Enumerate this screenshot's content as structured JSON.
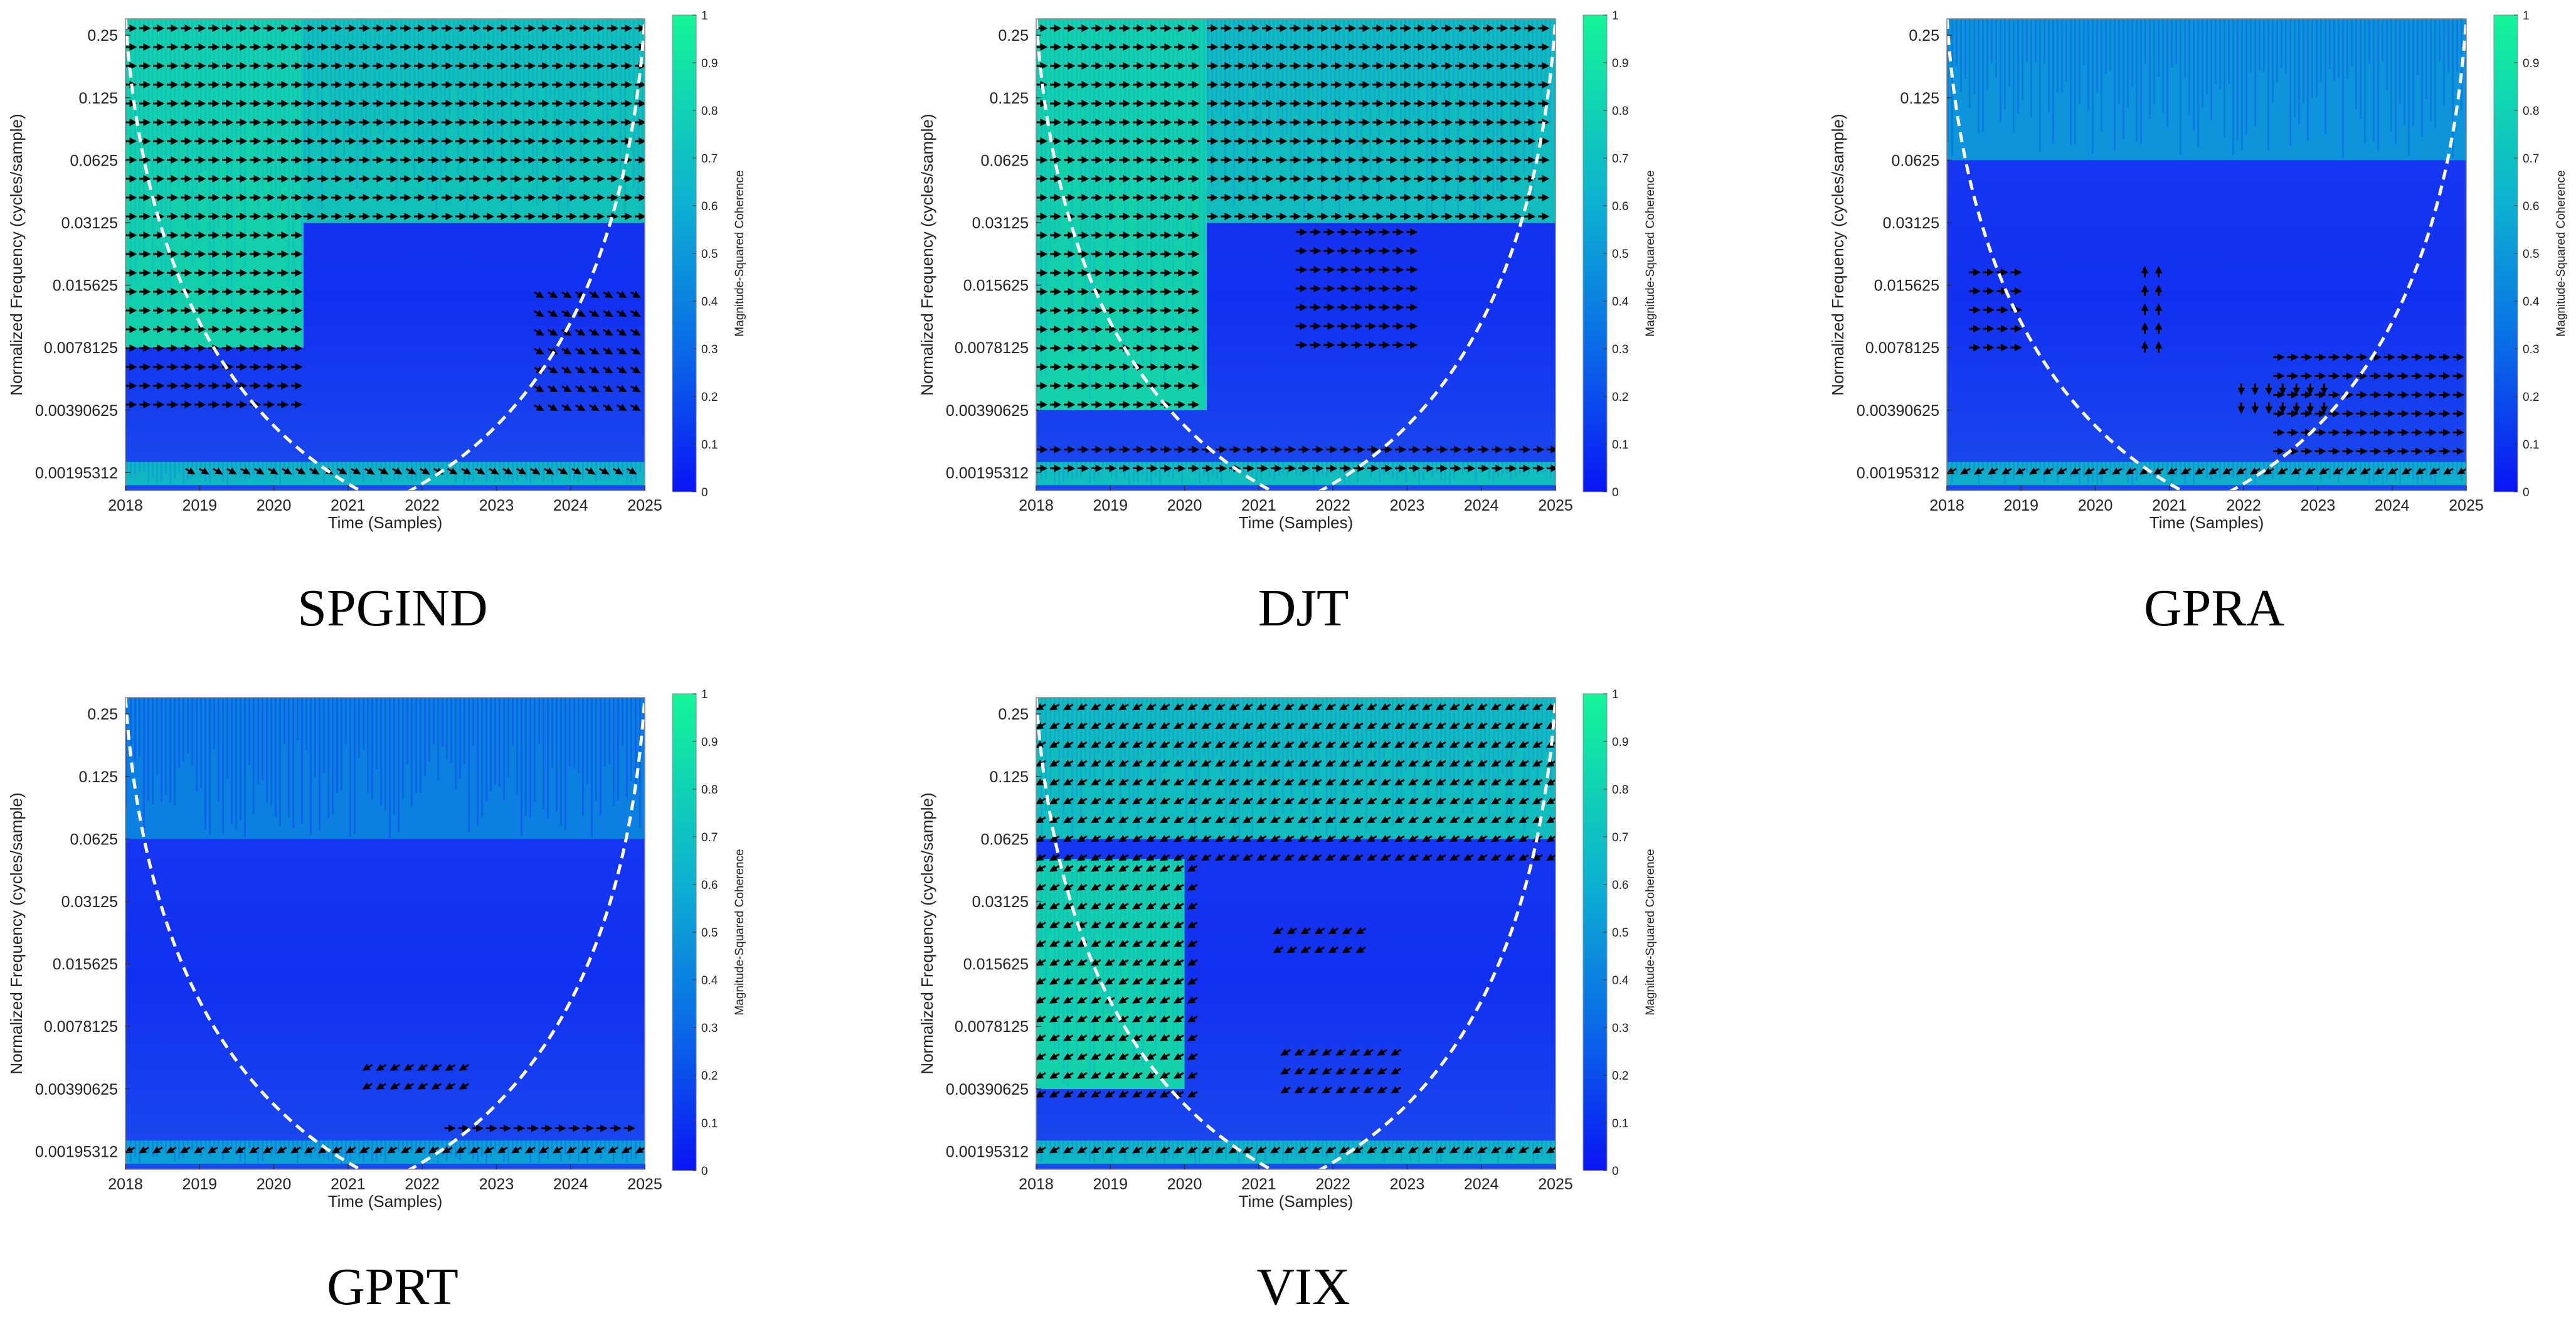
{
  "chart_data": [
    {
      "type": "heatmap",
      "name": "SPGIND",
      "caption": "SPGIND",
      "xlabel": "Time (Samples)",
      "ylabel": "Normalized Frequency  (cycles/sample)",
      "x_ticks": [
        "2018",
        "2019",
        "2020",
        "2021",
        "2022",
        "2023",
        "2024",
        "2025"
      ],
      "y_ticks": [
        "0.25",
        "0.125",
        "0.0625",
        "0.03125",
        "0.015625",
        "0.0078125",
        "0.00390625",
        "0.00195312"
      ],
      "colorbar_label": "Magnitude-Squared Coherence",
      "colorbar_ticks": [
        "0",
        "0.1",
        "0.2",
        "0.3",
        "0.4",
        "0.5",
        "0.6",
        "0.7",
        "0.8",
        "0.9",
        "1"
      ],
      "clim": [
        0,
        1
      ],
      "high_coherence_regions": [
        {
          "t": [
            2018.0,
            2020.4
          ],
          "f": [
            0.0078125,
            0.3
          ],
          "level": 0.95
        },
        {
          "t": [
            2020.4,
            2025.0
          ],
          "f": [
            0.03125,
            0.3
          ],
          "level": 0.85
        },
        {
          "t": [
            2018.0,
            2025.0
          ],
          "f": [
            0.0017,
            0.0022
          ],
          "level": 0.75
        }
      ],
      "phase_arrow_regions": [
        {
          "t": [
            2018.0,
            2020.4
          ],
          "f": [
            0.0039,
            0.3
          ],
          "direction": "right"
        },
        {
          "t": [
            2020.4,
            2025.0
          ],
          "f": [
            0.03125,
            0.3
          ],
          "direction": "right"
        },
        {
          "t": [
            2023.5,
            2025.0
          ],
          "f": [
            0.0039,
            0.0156
          ],
          "direction": "down-right"
        },
        {
          "t": [
            2018.8,
            2025.0
          ],
          "f": [
            0.0017,
            0.0022
          ],
          "direction": "down-right"
        }
      ]
    },
    {
      "type": "heatmap",
      "name": "DJT",
      "caption": "DJT",
      "xlabel": "Time (Samples)",
      "ylabel": "Normalized Frequency  (cycles/sample)",
      "x_ticks": [
        "2018",
        "2019",
        "2020",
        "2021",
        "2022",
        "2023",
        "2024",
        "2025"
      ],
      "y_ticks": [
        "0.25",
        "0.125",
        "0.0625",
        "0.03125",
        "0.015625",
        "0.0078125",
        "0.00390625",
        "0.00195312"
      ],
      "colorbar_label": "Magnitude-Squared Coherence",
      "colorbar_ticks": [
        "0",
        "0.1",
        "0.2",
        "0.3",
        "0.4",
        "0.5",
        "0.6",
        "0.7",
        "0.8",
        "0.9",
        "1"
      ],
      "clim": [
        0,
        1
      ],
      "high_coherence_regions": [
        {
          "t": [
            2018.0,
            2020.3
          ],
          "f": [
            0.0039,
            0.3
          ],
          "level": 0.95
        },
        {
          "t": [
            2020.3,
            2025.0
          ],
          "f": [
            0.03125,
            0.3
          ],
          "level": 0.8
        },
        {
          "t": [
            2018.0,
            2025.0
          ],
          "f": [
            0.0017,
            0.0022
          ],
          "level": 0.8
        }
      ],
      "phase_arrow_regions": [
        {
          "t": [
            2018.0,
            2020.3
          ],
          "f": [
            0.0039,
            0.3
          ],
          "direction": "right"
        },
        {
          "t": [
            2020.3,
            2025.0
          ],
          "f": [
            0.03125,
            0.3
          ],
          "direction": "right"
        },
        {
          "t": [
            2021.5,
            2023.2
          ],
          "f": [
            0.0078,
            0.03125
          ],
          "direction": "right"
        },
        {
          "t": [
            2018.0,
            2025.0
          ],
          "f": [
            0.0017,
            0.0028
          ],
          "direction": "right"
        }
      ]
    },
    {
      "type": "heatmap",
      "name": "GPRA",
      "caption": "GPRA",
      "xlabel": "Time (Samples)",
      "ylabel": "Normalized Frequency  (cycles/sample)",
      "x_ticks": [
        "2018",
        "2019",
        "2020",
        "2021",
        "2022",
        "2023",
        "2024",
        "2025"
      ],
      "y_ticks": [
        "0.25",
        "0.125",
        "0.0625",
        "0.03125",
        "0.015625",
        "0.0078125",
        "0.00390625",
        "0.00195312"
      ],
      "colorbar_label": "Magnitude-Squared Coherence",
      "colorbar_ticks": [
        "0",
        "0.1",
        "0.2",
        "0.3",
        "0.4",
        "0.5",
        "0.6",
        "0.7",
        "0.8",
        "0.9",
        "1"
      ],
      "clim": [
        0,
        1
      ],
      "high_coherence_regions": [
        {
          "t": [
            2018.0,
            2025.0
          ],
          "f": [
            0.0625,
            0.3
          ],
          "level": 0.55
        },
        {
          "t": [
            2018.0,
            2025.0
          ],
          "f": [
            0.0017,
            0.0022
          ],
          "level": 0.7
        }
      ],
      "phase_arrow_regions": [
        {
          "t": [
            2018.3,
            2019.0
          ],
          "f": [
            0.0078,
            0.02
          ],
          "direction": "right"
        },
        {
          "t": [
            2020.6,
            2021.0
          ],
          "f": [
            0.0078,
            0.02
          ],
          "direction": "up"
        },
        {
          "t": [
            2021.9,
            2023.2
          ],
          "f": [
            0.0039,
            0.0055
          ],
          "direction": "down"
        },
        {
          "t": [
            2022.4,
            2025.0
          ],
          "f": [
            0.0024,
            0.0078
          ],
          "direction": "right"
        },
        {
          "t": [
            2018.0,
            2025.0
          ],
          "f": [
            0.0017,
            0.0022
          ],
          "direction": "down-left"
        }
      ]
    },
    {
      "type": "heatmap",
      "name": "GPRT",
      "caption": "GPRT",
      "xlabel": "Time (Samples)",
      "ylabel": "Normalized Frequency  (cycles/sample)",
      "x_ticks": [
        "2018",
        "2019",
        "2020",
        "2021",
        "2022",
        "2023",
        "2024",
        "2025"
      ],
      "y_ticks": [
        "0.25",
        "0.125",
        "0.0625",
        "0.03125",
        "0.015625",
        "0.0078125",
        "0.00390625",
        "0.00195312"
      ],
      "colorbar_label": "Magnitude-Squared Coherence",
      "colorbar_ticks": [
        "0",
        "0.1",
        "0.2",
        "0.3",
        "0.4",
        "0.5",
        "0.6",
        "0.7",
        "0.8",
        "0.9",
        "1"
      ],
      "clim": [
        0,
        1
      ],
      "high_coherence_regions": [
        {
          "t": [
            2018.0,
            2025.0
          ],
          "f": [
            0.0625,
            0.3
          ],
          "level": 0.45
        },
        {
          "t": [
            2018.0,
            2025.0
          ],
          "f": [
            0.0017,
            0.0022
          ],
          "level": 0.6
        }
      ],
      "phase_arrow_regions": [
        {
          "t": [
            2021.2,
            2022.8
          ],
          "f": [
            0.0035,
            0.0055
          ],
          "direction": "down-left"
        },
        {
          "t": [
            2022.3,
            2025.0
          ],
          "f": [
            0.0022,
            0.0028
          ],
          "direction": "right"
        },
        {
          "t": [
            2018.0,
            2025.0
          ],
          "f": [
            0.0017,
            0.0022
          ],
          "direction": "down-left"
        }
      ]
    },
    {
      "type": "heatmap",
      "name": "VIX",
      "caption": "VIX",
      "xlabel": "Time (Samples)",
      "ylabel": "Normalized Frequency  (cycles/sample)",
      "x_ticks": [
        "2018",
        "2019",
        "2020",
        "2021",
        "2022",
        "2023",
        "2024",
        "2025"
      ],
      "y_ticks": [
        "0.25",
        "0.125",
        "0.0625",
        "0.03125",
        "0.015625",
        "0.0078125",
        "0.00390625",
        "0.00195312"
      ],
      "colorbar_label": "Magnitude-Squared Coherence",
      "colorbar_ticks": [
        "0",
        "0.1",
        "0.2",
        "0.3",
        "0.4",
        "0.5",
        "0.6",
        "0.7",
        "0.8",
        "0.9",
        "1"
      ],
      "clim": [
        0,
        1
      ],
      "high_coherence_regions": [
        {
          "t": [
            2018.0,
            2020.0
          ],
          "f": [
            0.0039,
            0.05
          ],
          "level": 0.95
        },
        {
          "t": [
            2018.0,
            2025.0
          ],
          "f": [
            0.0625,
            0.3
          ],
          "level": 0.8
        },
        {
          "t": [
            2018.0,
            2025.0
          ],
          "f": [
            0.0017,
            0.0022
          ],
          "level": 0.75
        }
      ],
      "phase_arrow_regions": [
        {
          "t": [
            2018.0,
            2020.2
          ],
          "f": [
            0.0035,
            0.05
          ],
          "direction": "down-left"
        },
        {
          "t": [
            2018.0,
            2025.0
          ],
          "f": [
            0.05,
            0.3
          ],
          "direction": "down-left"
        },
        {
          "t": [
            2021.2,
            2022.6
          ],
          "f": [
            0.015,
            0.025
          ],
          "direction": "down-left"
        },
        {
          "t": [
            2021.3,
            2023.0
          ],
          "f": [
            0.0035,
            0.0065
          ],
          "direction": "down-left"
        },
        {
          "t": [
            2018.0,
            2025.0
          ],
          "f": [
            0.0017,
            0.0022
          ],
          "direction": "down-left"
        }
      ]
    }
  ]
}
